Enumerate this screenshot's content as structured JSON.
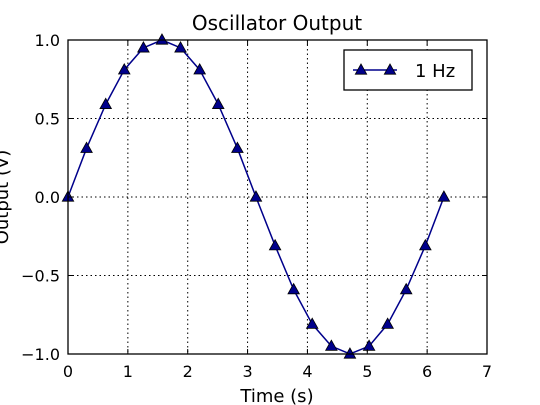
{
  "chart_data": {
    "type": "line",
    "title": "Oscillator Output",
    "xlabel": "Time (s)",
    "ylabel": "Output (V)",
    "xlim": [
      0,
      7
    ],
    "ylim": [
      -1.0,
      1.0
    ],
    "xticks": [
      0,
      1,
      2,
      3,
      4,
      5,
      6,
      7
    ],
    "xtick_labels": [
      "0",
      "1",
      "2",
      "3",
      "4",
      "5",
      "6",
      "7"
    ],
    "yticks": [
      -1.0,
      -0.5,
      0.0,
      0.5,
      1.0
    ],
    "ytick_labels": [
      "−1.0",
      "−0.5",
      "0.0",
      "0.5",
      "1.0"
    ],
    "grid": true,
    "legend_position": "top-right",
    "series": [
      {
        "name": "1 Hz",
        "color": "#00008b",
        "marker": "triangle",
        "x": [
          0.0,
          0.31,
          0.63,
          0.94,
          1.26,
          1.57,
          1.88,
          2.2,
          2.51,
          2.83,
          3.14,
          3.46,
          3.77,
          4.08,
          4.4,
          4.71,
          5.03,
          5.34,
          5.65,
          5.97,
          6.28
        ],
        "y": [
          0.0,
          0.31,
          0.59,
          0.81,
          0.95,
          1.0,
          0.95,
          0.81,
          0.59,
          0.31,
          0.0,
          -0.31,
          -0.59,
          -0.81,
          -0.95,
          -1.0,
          -0.95,
          -0.81,
          -0.59,
          -0.31,
          0.0
        ]
      }
    ]
  }
}
